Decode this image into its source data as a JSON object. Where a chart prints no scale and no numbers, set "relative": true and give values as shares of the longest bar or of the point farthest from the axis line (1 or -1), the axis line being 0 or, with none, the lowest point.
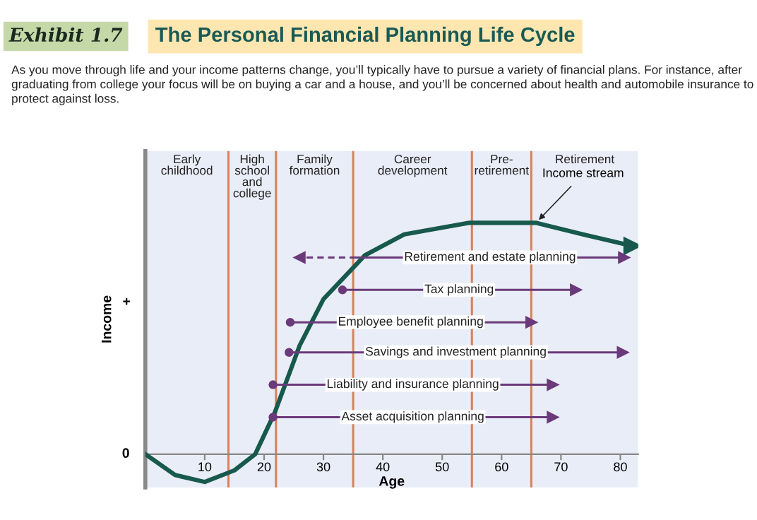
{
  "chart_data": {
    "type": "line",
    "relative": true,
    "title": "The Personal Financial Planning Life Cycle",
    "subtitle": "As you move through life and your income patterns change, you’ll typically have to pursue a variety of financial plans. For instance, after graduating from college your focus will be on buying a car and a house, and you’ll be concerned about health and automobile insurance to protect against loss.",
    "xlabel": "Age",
    "ylabel": "Income",
    "annotations": [
      "Exhibit 1.7",
      "+",
      {
        "text": "0",
        "x": 0,
        "y": 0
      }
    ],
    "xlim": [
      0,
      83
    ],
    "xticks": [
      10,
      20,
      30,
      40,
      50,
      60,
      70,
      80
    ],
    "ref_lines": [
      {
        "axis": "x",
        "value": 14,
        "color": "#d9825b"
      },
      {
        "axis": "x",
        "value": 22,
        "color": "#d9825b"
      },
      {
        "axis": "x",
        "value": 35,
        "color": "#d9825b"
      },
      {
        "axis": "x",
        "value": 55,
        "color": "#d9825b"
      },
      {
        "axis": "x",
        "value": 65,
        "color": "#d9825b"
      }
    ],
    "bands": [
      {
        "axis": "x",
        "from": 0,
        "to": 14,
        "label": "Early\nchildhood",
        "color": "#e9edf7"
      },
      {
        "axis": "x",
        "from": 14,
        "to": 22,
        "label": "High\nschool\nand\ncollege",
        "color": "#e9edf7"
      },
      {
        "axis": "x",
        "from": 22,
        "to": 35,
        "label": "Family\nformation",
        "color": "#e9edf7"
      },
      {
        "axis": "x",
        "from": 35,
        "to": 55,
        "label": "Career\ndevelopment",
        "color": "#e9edf7"
      },
      {
        "axis": "x",
        "from": 55,
        "to": 65,
        "label": "Pre-\nretirement",
        "color": "#e9edf7"
      },
      {
        "axis": "x",
        "from": 65,
        "to": 83,
        "label": "Retirement",
        "color": "#e9edf7"
      }
    ],
    "series": [
      {
        "name": "Income stream",
        "color": "#17594c",
        "line_style": "solid",
        "marker": "none",
        "x": [
          0,
          5,
          10,
          15,
          18.5,
          21.8,
          26,
          30,
          37,
          43.6,
          54.6,
          65.8,
          73.7,
          82
        ],
        "values": [
          0,
          -0.09,
          -0.12,
          -0.07,
          0,
          0.18,
          0.47,
          0.67,
          0.86,
          0.95,
          1,
          1,
          0.95,
          0.9
        ]
      },
      {
        "color": "#6b3a7a",
        "line_style": "dashed",
        "marker": "triangle",
        "x": [
          35.5,
          26
        ],
        "values": [
          0.85,
          0.85
        ]
      },
      {
        "name": "Retirement and estate planning",
        "color": "#6b3a7a",
        "line_style": "solid",
        "marker": "triangle",
        "x": [
          35.5,
          80.6
        ],
        "values": [
          0.85,
          0.85
        ]
      },
      {
        "name": "Tax planning",
        "color": "#6b3a7a",
        "line_style": "solid",
        "marker": "circle",
        "x": [
          33.2,
          72.5
        ],
        "values": [
          0.71,
          0.71
        ]
      },
      {
        "name": "Employee benefit planning",
        "color": "#6b3a7a",
        "line_style": "solid",
        "marker": "circle",
        "x": [
          24.4,
          65
        ],
        "values": [
          0.57,
          0.57
        ]
      },
      {
        "name": "Savings and investment planning",
        "color": "#6b3a7a",
        "line_style": "solid",
        "marker": "circle",
        "x": [
          24.2,
          80.4
        ],
        "values": [
          0.44,
          0.44
        ]
      },
      {
        "name": "Liability and insurance planning",
        "color": "#6b3a7a",
        "line_style": "solid",
        "marker": "circle",
        "x": [
          21.5,
          68.6
        ],
        "values": [
          0.3,
          0.3
        ]
      },
      {
        "name": "Asset acquisition planning",
        "color": "#6b3a7a",
        "line_style": "solid",
        "marker": "circle",
        "x": [
          21.5,
          68.6
        ],
        "values": [
          0.16,
          0.16
        ]
      }
    ]
  }
}
